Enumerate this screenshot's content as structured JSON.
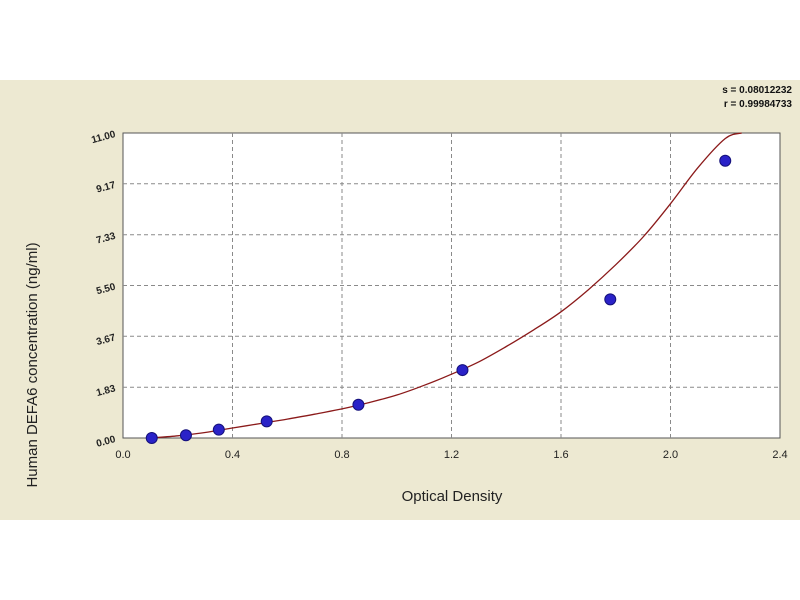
{
  "chart_data": {
    "type": "scatter",
    "xlabel": "Optical Density",
    "ylabel": "Human DEFA6 concentration (ng/ml)",
    "xlim": [
      0.0,
      2.4
    ],
    "ylim": [
      0.0,
      11.0
    ],
    "x_ticks": [
      "0.0",
      "0.4",
      "0.8",
      "1.2",
      "1.6",
      "2.0",
      "2.4"
    ],
    "x_tick_values": [
      0.0,
      0.4,
      0.8,
      1.2,
      1.6,
      2.0,
      2.4
    ],
    "y_ticks": [
      "0.00",
      "1.83",
      "3.67",
      "5.50",
      "7.33",
      "9.17",
      "11.00"
    ],
    "y_tick_values": [
      0.0,
      1.83,
      3.67,
      5.5,
      7.33,
      9.17,
      11.0
    ],
    "grid": true,
    "stats": [
      "s = 0.08012232",
      "r = 0.99984733"
    ],
    "series": [
      {
        "kind": "points",
        "x": [
          0.105,
          0.23,
          0.35,
          0.525,
          0.86,
          1.24,
          1.78,
          2.2
        ],
        "y": [
          0.0,
          0.1,
          0.3,
          0.6,
          1.2,
          2.45,
          5.0,
          10.0
        ]
      },
      {
        "kind": "fit-curve",
        "x": [
          0.1,
          0.2,
          0.3,
          0.4,
          0.5,
          0.6,
          0.7,
          0.8,
          0.9,
          1.0,
          1.1,
          1.2,
          1.3,
          1.4,
          1.5,
          1.6,
          1.7,
          1.8,
          1.9,
          2.0,
          2.1,
          2.2,
          2.26
        ],
        "y": [
          0.0,
          0.08,
          0.2,
          0.36,
          0.52,
          0.68,
          0.86,
          1.05,
          1.28,
          1.55,
          1.9,
          2.3,
          2.75,
          3.3,
          3.9,
          4.55,
          5.35,
          6.25,
          7.25,
          8.45,
          9.75,
          10.8,
          11.0
        ]
      }
    ],
    "colors": {
      "background": "#ede9d2",
      "plot_area": "#ffffff",
      "grid": "#8a8a8a",
      "curve": "#8b1a1a",
      "marker": "#2a22c8"
    }
  }
}
